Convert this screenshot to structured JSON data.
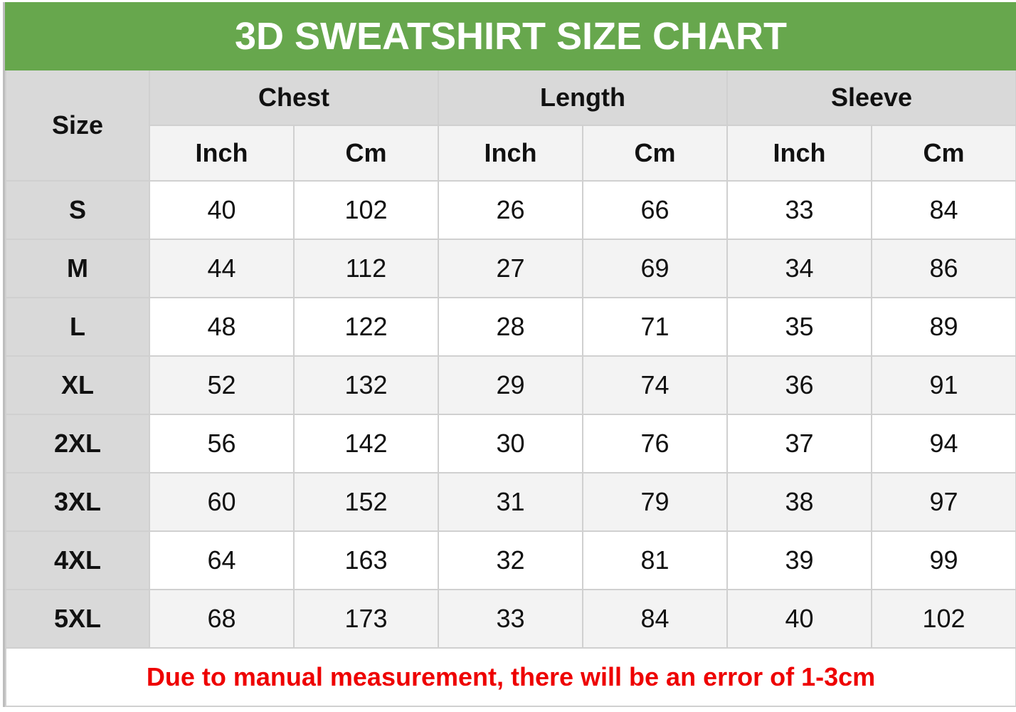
{
  "title": "3D SWEATSHIRT SIZE CHART",
  "size_header": "Size",
  "groups": [
    "Chest",
    "Length",
    "Sleeve"
  ],
  "units": [
    "Inch",
    "Cm",
    "Inch",
    "Cm",
    "Inch",
    "Cm"
  ],
  "rows": [
    {
      "size": "S",
      "values": [
        "40",
        "102",
        "26",
        "66",
        "33",
        "84"
      ]
    },
    {
      "size": "M",
      "values": [
        "44",
        "112",
        "27",
        "69",
        "34",
        "86"
      ]
    },
    {
      "size": "L",
      "values": [
        "48",
        "122",
        "28",
        "71",
        "35",
        "89"
      ]
    },
    {
      "size": "XL",
      "values": [
        "52",
        "132",
        "29",
        "74",
        "36",
        "91"
      ]
    },
    {
      "size": "2XL",
      "values": [
        "56",
        "142",
        "30",
        "76",
        "37",
        "94"
      ]
    },
    {
      "size": "3XL",
      "values": [
        "60",
        "152",
        "31",
        "79",
        "38",
        "97"
      ]
    },
    {
      "size": "4XL",
      "values": [
        "64",
        "163",
        "32",
        "81",
        "39",
        "99"
      ]
    },
    {
      "size": "5XL",
      "values": [
        "68",
        "173",
        "33",
        "84",
        "40",
        "102"
      ]
    }
  ],
  "note": "Due to manual measurement, there will be an error of 1-3cm",
  "colors": {
    "title_bg": "#67a74d",
    "note_text": "#ee0000",
    "header_bg": "#d9d9d9"
  }
}
